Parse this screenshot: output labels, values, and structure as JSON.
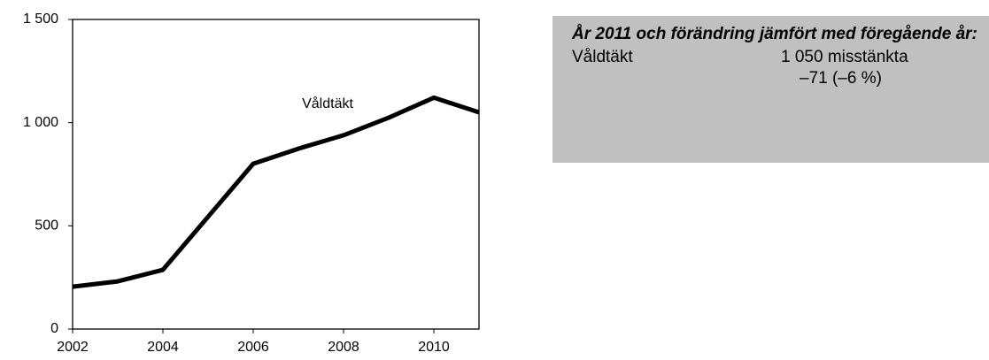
{
  "chart_data": {
    "type": "line",
    "x": [
      2002,
      2003,
      2004,
      2005,
      2006,
      2007,
      2008,
      2009,
      2010,
      2011
    ],
    "series": [
      {
        "name": "Våldtäkt",
        "color": "#000000",
        "values": [
          205,
          231,
          287,
          544,
          801,
          874,
          939,
          1024,
          1121,
          1050
        ]
      }
    ],
    "xlim": [
      2002,
      2011
    ],
    "xticks": [
      2002,
      2004,
      2006,
      2008,
      2010
    ],
    "ylim": [
      0,
      1500
    ],
    "yticks": [
      0,
      500,
      {
        "value": 1000,
        "label": "1 000"
      },
      {
        "value": 1500,
        "label": "1 500"
      }
    ]
  },
  "info_box": {
    "title": "År 2011 och förändring jämfört med föregående år:",
    "rows": [
      {
        "label": "Våldtäkt",
        "value": "1 050 misstänkta",
        "change": "–71 (–6 %)"
      }
    ]
  }
}
